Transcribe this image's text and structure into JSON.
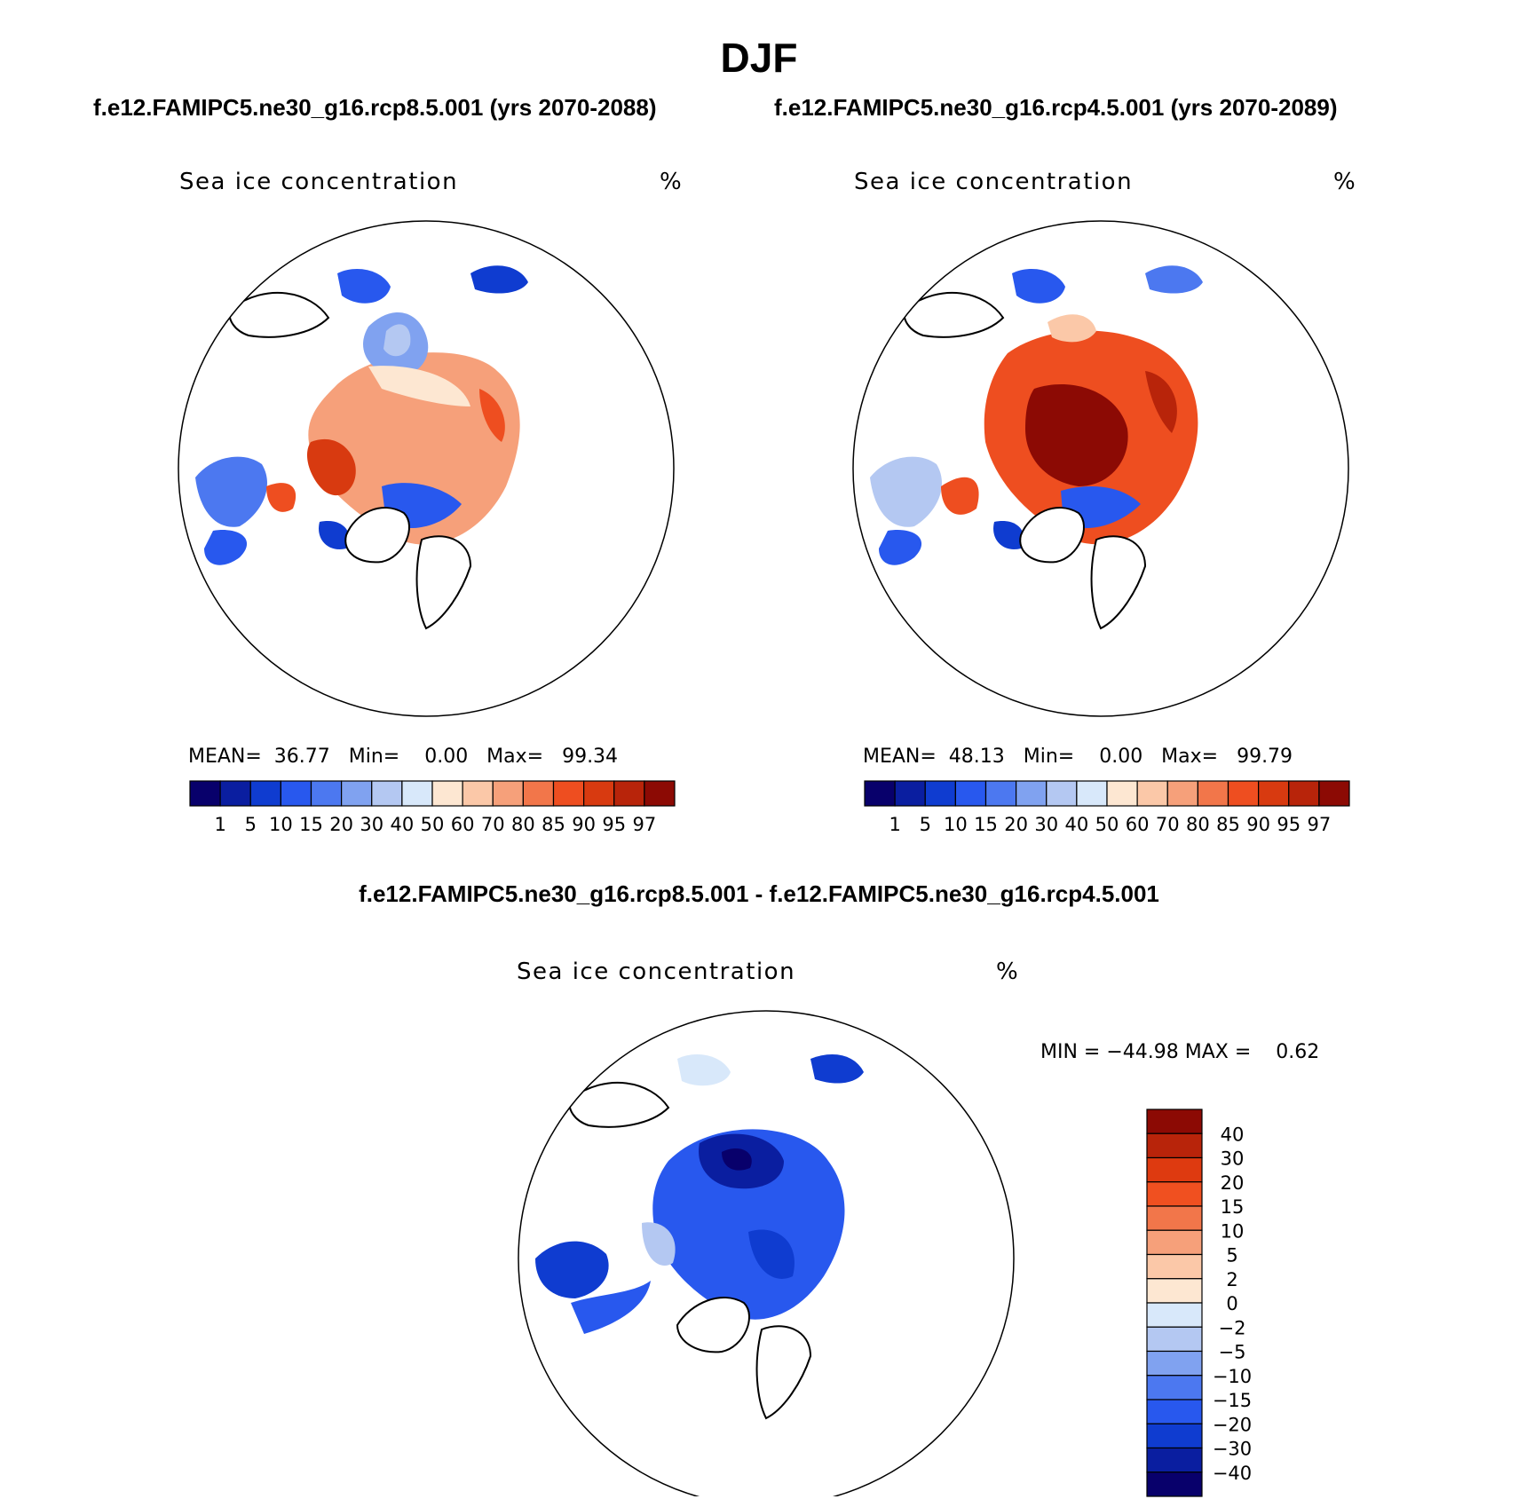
{
  "figure": {
    "title": "DJF",
    "case1": "f.e12.FAMIPC5.ne30_g16.rcp8.5.001 (yrs 2070-2088)",
    "case2": "f.e12.FAMIPC5.ne30_g16.rcp4.5.001 (yrs 2070-2089)",
    "diff_title": "f.e12.FAMIPC5.ne30_g16.rcp8.5.001 - f.e12.FAMIPC5.ne30_g16.rcp4.5.001"
  },
  "panels": {
    "p1": {
      "variable": "Sea ice concentration",
      "units": "%",
      "stats": "MEAN=  36.77   Min=    0.00   Max=   99.34",
      "mean": 36.77,
      "min": 0.0,
      "max": 99.34
    },
    "p2": {
      "variable": "Sea ice concentration",
      "units": "%",
      "stats": "MEAN=  48.13   Min=    0.00   Max=   99.79",
      "mean": 48.13,
      "min": 0.0,
      "max": 99.79
    },
    "diff": {
      "variable": "Sea ice concentration",
      "units": "%",
      "stats": "MIN = −44.98 MAX =    0.62",
      "min": -44.98,
      "max": 0.62
    }
  },
  "colorbars": {
    "abs": {
      "colors": [
        "#08006b",
        "#0a1ea0",
        "#0f3cd0",
        "#2858ee",
        "#4c78f0",
        "#80a2f0",
        "#b4c8f2",
        "#d8e8fa",
        "#fde7d2",
        "#fbc8a8",
        "#f6a07a",
        "#f2764a",
        "#ee4e20",
        "#d83a10",
        "#b8240a",
        "#8c0a04"
      ],
      "labels": [
        "1",
        "5",
        "10",
        "15",
        "20",
        "30",
        "40",
        "50",
        "60",
        "70",
        "80",
        "85",
        "90",
        "95",
        "97"
      ]
    },
    "diff": {
      "colors_top_to_bottom": [
        "#8c0a04",
        "#b8240a",
        "#de3a10",
        "#f05020",
        "#f2764a",
        "#f6a07a",
        "#fbc8a8",
        "#fde7d2",
        "#d8e8fa",
        "#b4c8f2",
        "#80a2f0",
        "#4c78f0",
        "#2858ee",
        "#0f3cd0",
        "#0a1ea0",
        "#08006b"
      ],
      "labels": [
        "40",
        "30",
        "20",
        "15",
        "10",
        "5",
        "2",
        "0",
        "−2",
        "−5",
        "−10",
        "−15",
        "−20",
        "−30",
        "−40"
      ]
    }
  }
}
